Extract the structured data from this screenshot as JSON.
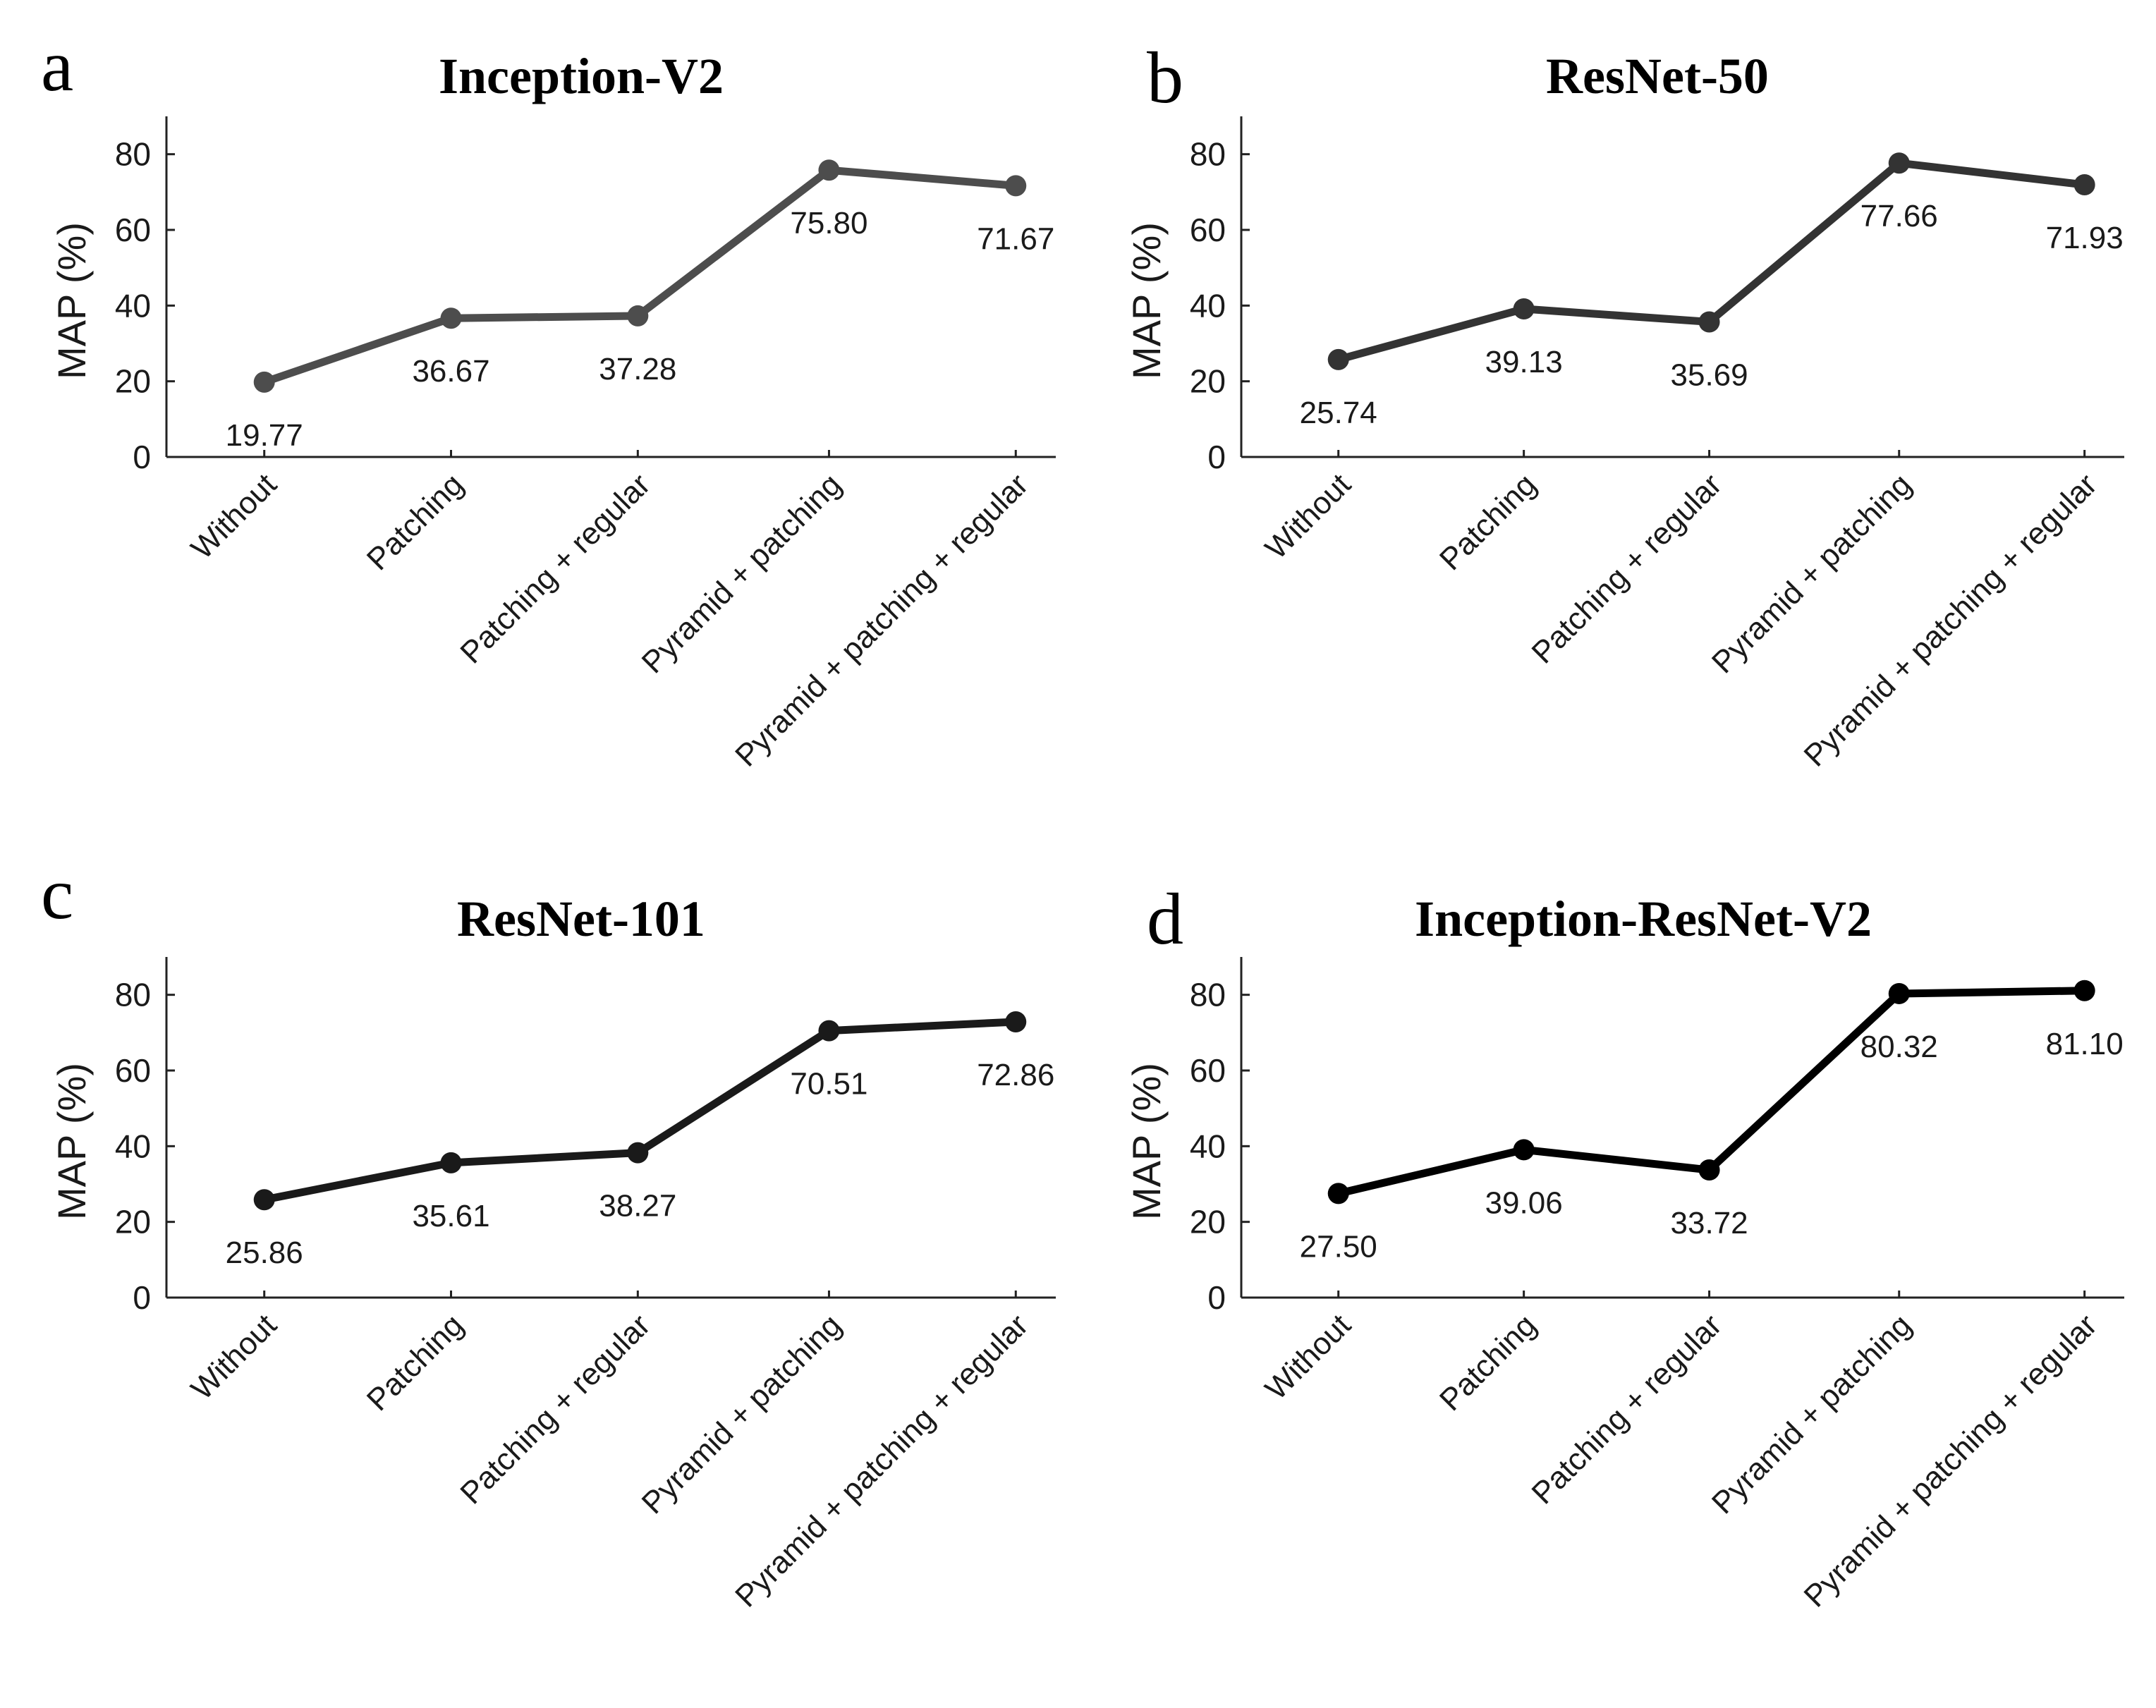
{
  "chart_data": [
    {
      "type": "line",
      "panel": "a",
      "title": "Inception-V2",
      "ylabel": "MAP (%)",
      "xlabel": "",
      "ylim": [
        0,
        90
      ],
      "yticks": [
        0,
        20,
        40,
        60,
        80
      ],
      "categories": [
        "Without",
        "Patching",
        "Patching + regular",
        "Pyramid + patching",
        "Pyramid + patching + regular"
      ],
      "values": [
        19.77,
        36.67,
        37.28,
        75.8,
        71.67
      ],
      "value_labels": [
        "19.77",
        "36.67",
        "37.28",
        "75.80",
        "71.67"
      ],
      "color": "#4d4d4d"
    },
    {
      "type": "line",
      "panel": "b",
      "title": "ResNet-50",
      "ylabel": "MAP (%)",
      "xlabel": "",
      "ylim": [
        0,
        90
      ],
      "yticks": [
        0,
        20,
        40,
        60,
        80
      ],
      "categories": [
        "Without",
        "Patching",
        "Patching + regular",
        "Pyramid + patching",
        "Pyramid + patching + regular"
      ],
      "values": [
        25.74,
        39.13,
        35.69,
        77.66,
        71.93
      ],
      "value_labels": [
        "25.74",
        "39.13",
        "35.69",
        "77.66",
        "71.93"
      ],
      "color": "#333333"
    },
    {
      "type": "line",
      "panel": "c",
      "title": "ResNet-101",
      "ylabel": "MAP (%)",
      "xlabel": "",
      "ylim": [
        0,
        90
      ],
      "yticks": [
        0,
        20,
        40,
        60,
        80
      ],
      "categories": [
        "Without",
        "Patching",
        "Patching + regular",
        "Pyramid + patching",
        "Pyramid + patching + regular"
      ],
      "values": [
        25.86,
        35.61,
        38.27,
        70.51,
        72.86
      ],
      "value_labels": [
        "25.86",
        "35.61",
        "38.27",
        "70.51",
        "72.86"
      ],
      "color": "#1a1a1a"
    },
    {
      "type": "line",
      "panel": "d",
      "title": "Inception-ResNet-V2",
      "ylabel": "MAP (%)",
      "xlabel": "",
      "ylim": [
        0,
        90
      ],
      "yticks": [
        0,
        20,
        40,
        60,
        80
      ],
      "categories": [
        "Without",
        "Patching",
        "Patching + regular",
        "Pyramid + patching",
        "Pyramid + patching + regular"
      ],
      "values": [
        27.5,
        39.06,
        33.72,
        80.32,
        81.1
      ],
      "value_labels": [
        "27.50",
        "39.06",
        "33.72",
        "80.32",
        "81.10"
      ],
      "color": "#000000"
    }
  ]
}
